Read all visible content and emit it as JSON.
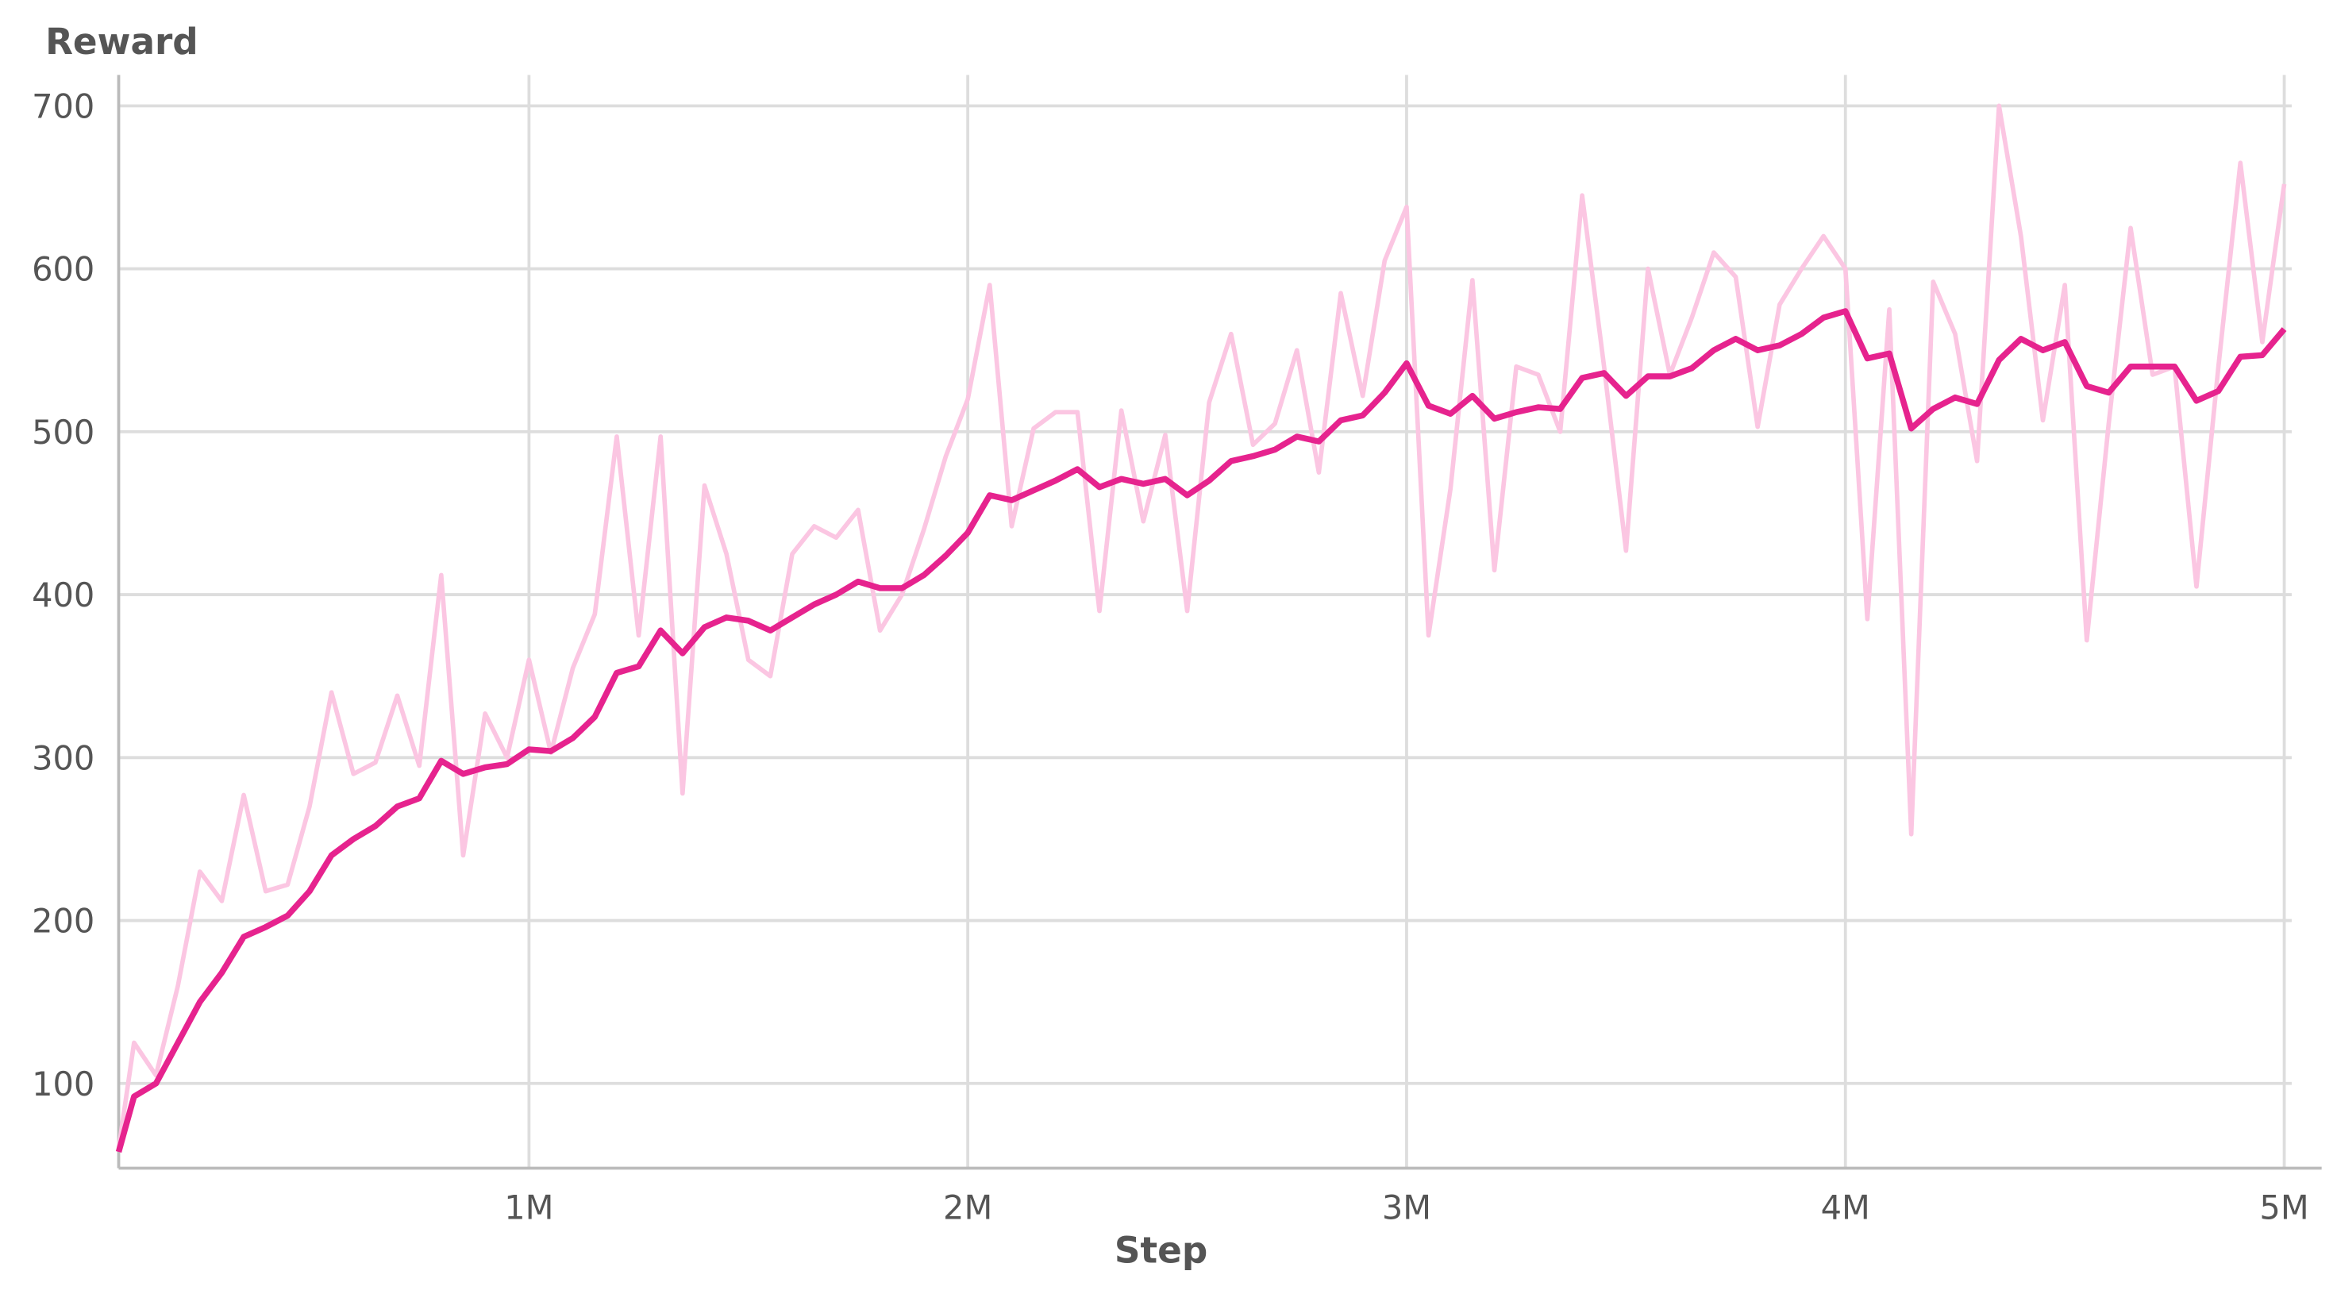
{
  "chart_data": {
    "type": "line",
    "y_label": "Reward",
    "x_label": "Step",
    "x": [
      65000,
      100000,
      150000,
      200000,
      250000,
      300000,
      350000,
      400000,
      450000,
      500000,
      550000,
      600000,
      650000,
      700000,
      750000,
      800000,
      850000,
      900000,
      950000,
      1000000,
      1050000,
      1100000,
      1150000,
      1200000,
      1250000,
      1300000,
      1350000,
      1400000,
      1450000,
      1500000,
      1550000,
      1600000,
      1650000,
      1700000,
      1750000,
      1800000,
      1850000,
      1900000,
      1950000,
      2000000,
      2050000,
      2100000,
      2150000,
      2200000,
      2250000,
      2300000,
      2350000,
      2400000,
      2450000,
      2500000,
      2550000,
      2600000,
      2650000,
      2700000,
      2750000,
      2800000,
      2850000,
      2900000,
      2950000,
      3000000,
      3050000,
      3100000,
      3150000,
      3200000,
      3250000,
      3300000,
      3350000,
      3400000,
      3450000,
      3500000,
      3550000,
      3600000,
      3650000,
      3700000,
      3750000,
      3800000,
      3850000,
      3900000,
      3950000,
      4000000,
      4050000,
      4100000,
      4150000,
      4200000,
      4250000,
      4300000,
      4350000,
      4400000,
      4450000,
      4500000,
      4550000,
      4600000,
      4650000,
      4700000,
      4750000,
      4800000,
      4850000,
      4900000,
      4950000,
      5000000
    ],
    "series": [
      {
        "color": "#fbc6e2",
        "width": 3,
        "values": [
          60,
          125,
          105,
          160,
          230,
          212,
          277,
          218,
          222,
          270,
          340,
          290,
          297,
          338,
          295,
          412,
          240,
          327,
          300,
          360,
          303,
          355,
          388,
          497,
          375,
          497,
          278,
          467,
          425,
          360,
          350,
          425,
          442,
          435,
          452,
          378,
          400,
          440,
          485,
          520,
          590,
          442,
          502,
          512,
          512,
          390,
          513,
          445,
          498,
          390,
          518,
          560,
          492,
          505,
          550,
          475,
          585,
          522,
          605,
          638,
          375,
          465,
          593,
          415,
          540,
          535,
          500,
          645,
          540,
          427,
          600,
          535,
          570,
          610,
          595,
          503,
          578,
          600,
          620,
          600,
          385,
          575,
          253,
          592,
          560,
          482,
          700,
          620,
          507,
          590,
          372,
          505,
          625,
          535,
          540,
          405,
          540,
          665,
          555,
          652
        ]
      },
      {
        "color": "#e6238e",
        "width": 4,
        "values": [
          58,
          92,
          100,
          125,
          150,
          168,
          190,
          196,
          203,
          218,
          240,
          250,
          258,
          270,
          275,
          298,
          290,
          294,
          296,
          305,
          304,
          312,
          325,
          352,
          356,
          378,
          364,
          380,
          386,
          384,
          378,
          386,
          394,
          400,
          408,
          404,
          404,
          412,
          424,
          438,
          461,
          458,
          464,
          470,
          477,
          466,
          471,
          468,
          471,
          461,
          470,
          482,
          485,
          489,
          497,
          494,
          507,
          510,
          524,
          542,
          516,
          511,
          522,
          508,
          512,
          515,
          514,
          533,
          536,
          522,
          534,
          534,
          539,
          550,
          557,
          550,
          553,
          560,
          570,
          574,
          545,
          548,
          502,
          514,
          521,
          517,
          544,
          557,
          550,
          555,
          528,
          524,
          540,
          540,
          540,
          519,
          525,
          546,
          547,
          563
        ]
      }
    ],
    "xlim": [
      65000,
      5017000
    ],
    "xticks": [
      {
        "value": 1000000,
        "label": "1M"
      },
      {
        "value": 2000000,
        "label": "2M"
      },
      {
        "value": 3000000,
        "label": "3M"
      },
      {
        "value": 4000000,
        "label": "4M"
      },
      {
        "value": 5000000,
        "label": "5M"
      }
    ],
    "ylim": [
      48,
      719
    ],
    "yticks": [
      100,
      200,
      300,
      400,
      500,
      600,
      700
    ],
    "grid": true
  }
}
